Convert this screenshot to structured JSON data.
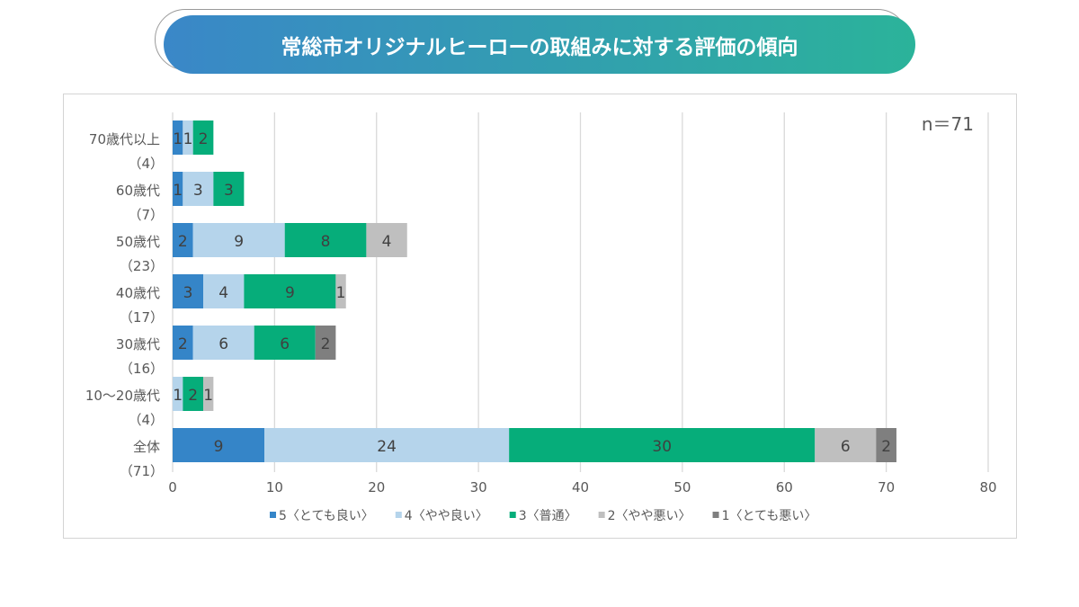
{
  "title": "常総市オリジナルヒーローの取組みに対する評価の傾向",
  "chart_data": {
    "type": "bar",
    "orientation": "horizontal",
    "stacked": true,
    "annotation": "n＝71",
    "categories": [
      [
        "70歳代以上",
        "（4）"
      ],
      [
        "60歳代",
        "（7）"
      ],
      [
        "50歳代",
        "（23）"
      ],
      [
        "40歳代",
        "（17）"
      ],
      [
        "30歳代",
        "（16）"
      ],
      [
        "10～20歳代",
        "（4）"
      ],
      [
        "全体",
        "（71）"
      ]
    ],
    "series": [
      {
        "name": "5〈とても良い〉",
        "color": "#3585c8",
        "values": [
          1,
          1,
          2,
          3,
          2,
          0,
          9
        ]
      },
      {
        "name": "4〈やや良い〉",
        "color": "#b5d4eb",
        "values": [
          1,
          3,
          9,
          4,
          6,
          1,
          24
        ]
      },
      {
        "name": "3〈普通〉",
        "color": "#06ad7a",
        "values": [
          2,
          3,
          8,
          9,
          6,
          2,
          30
        ]
      },
      {
        "name": "2〈やや悪い〉",
        "color": "#bfbfbf",
        "values": [
          0,
          0,
          4,
          1,
          0,
          1,
          6
        ]
      },
      {
        "name": "1〈とても悪い〉",
        "color": "#7f7f7f",
        "values": [
          0,
          0,
          0,
          0,
          2,
          0,
          2
        ]
      }
    ],
    "xlim": [
      0,
      80
    ],
    "xticks": [
      0,
      10,
      20,
      30,
      40,
      50,
      60,
      70,
      80
    ],
    "grid": true,
    "legend": "bottom"
  }
}
